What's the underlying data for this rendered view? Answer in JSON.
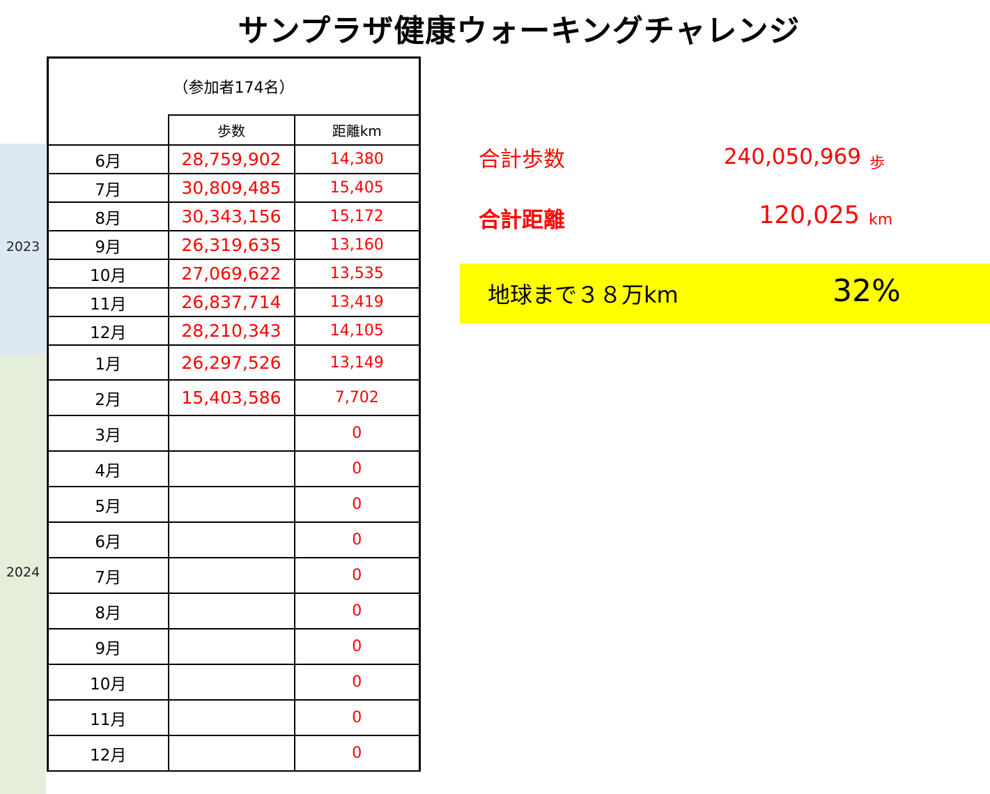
{
  "title": "サンプラザ健康ウォーキングチャレンジ",
  "years": {
    "first": "2023",
    "second": "2024"
  },
  "table": {
    "participants": "（参加者174名）",
    "headers": {
      "steps": "歩数",
      "distance": "距離km"
    },
    "rows": [
      {
        "month": "6月",
        "steps": "28,759,902",
        "distance": "14,380"
      },
      {
        "month": "7月",
        "steps": "30,809,485",
        "distance": "15,405"
      },
      {
        "month": "8月",
        "steps": "30,343,156",
        "distance": "15,172"
      },
      {
        "month": "9月",
        "steps": "26,319,635",
        "distance": "13,160"
      },
      {
        "month": "10月",
        "steps": "27,069,622",
        "distance": "13,535"
      },
      {
        "month": "11月",
        "steps": "26,837,714",
        "distance": "13,419"
      },
      {
        "month": "12月",
        "steps": "28,210,343",
        "distance": "14,105"
      },
      {
        "month": "1月",
        "steps": "26,297,526",
        "distance": "13,149"
      },
      {
        "month": "2月",
        "steps": "15,403,586",
        "distance": "7,702"
      },
      {
        "month": "3月",
        "steps": "",
        "distance": "0"
      },
      {
        "month": "4月",
        "steps": "",
        "distance": "0"
      },
      {
        "month": "5月",
        "steps": "",
        "distance": "0"
      },
      {
        "month": "6月",
        "steps": "",
        "distance": "0"
      },
      {
        "month": "7月",
        "steps": "",
        "distance": "0"
      },
      {
        "month": "8月",
        "steps": "",
        "distance": "0"
      },
      {
        "month": "9月",
        "steps": "",
        "distance": "0"
      },
      {
        "month": "10月",
        "steps": "",
        "distance": "0"
      },
      {
        "month": "11月",
        "steps": "",
        "distance": "0"
      },
      {
        "month": "12月",
        "steps": "",
        "distance": "0"
      }
    ]
  },
  "summary": {
    "total_steps_label": "合計歩数",
    "total_steps_value": "240,050,969",
    "total_steps_unit": "歩",
    "total_distance_label": "合計距離",
    "total_distance_value": "120,025",
    "total_distance_unit": "km",
    "earth_label": "地球まで３８万km",
    "earth_percent": "32%"
  },
  "colors": {
    "accent_red": "#ff0000",
    "highlight_yellow": "#ffff00",
    "band_2023": "#dce9f5",
    "band_2024": "#e4eed9"
  }
}
